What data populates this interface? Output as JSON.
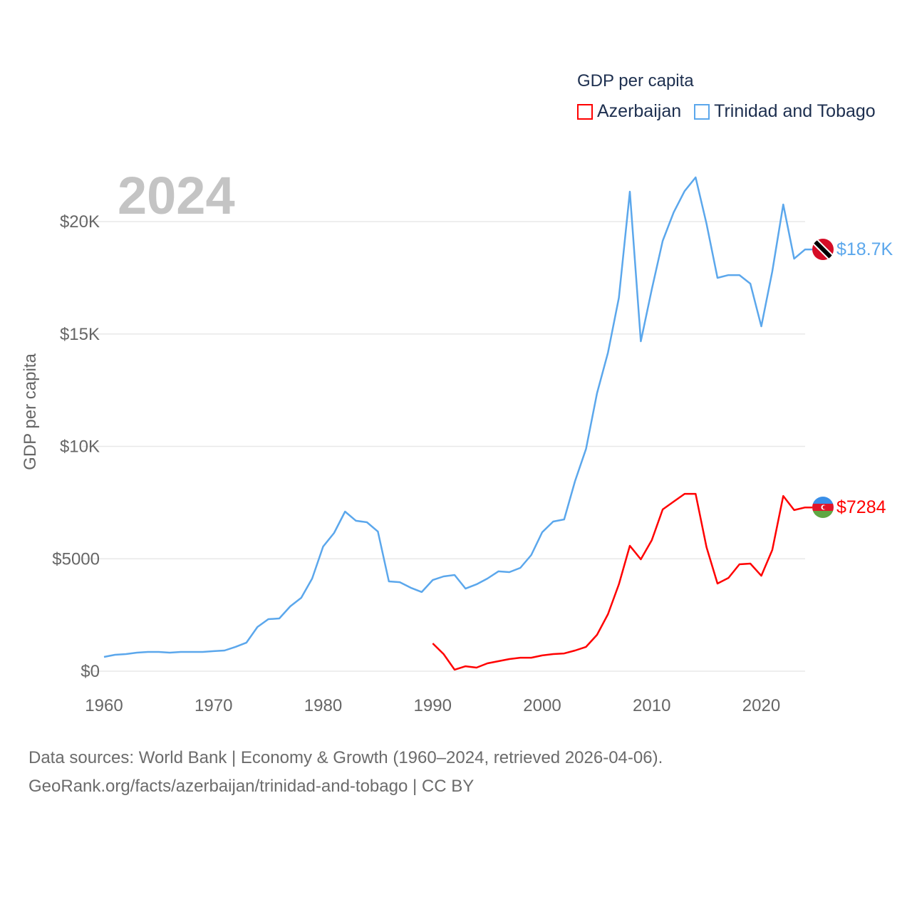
{
  "chart_data": {
    "type": "line",
    "title": "GDP per capita",
    "year_label": "2024",
    "xlabel": "",
    "ylabel": "GDP per capita",
    "xlim": [
      1960,
      2024
    ],
    "ylim": [
      0,
      22500
    ],
    "x_ticks": [
      1960,
      1970,
      1980,
      1990,
      2000,
      2010,
      2020
    ],
    "x_tick_labels": [
      "1960",
      "1970",
      "1980",
      "1990",
      "2000",
      "2010",
      "2020"
    ],
    "y_ticks": [
      0,
      5000,
      10000,
      15000,
      20000
    ],
    "y_tick_labels": [
      "$0",
      "$5000",
      "$10K",
      "$15K",
      "$20K"
    ],
    "grid": true,
    "legend_position": "top-right",
    "series": [
      {
        "name": "Azerbaijan",
        "color": "#ff0000",
        "end_label": "$7284",
        "start_year": 1990,
        "values": [
          1235,
          760,
          65,
          220,
          160,
          350,
          445,
          540,
          600,
          600,
          700,
          760,
          790,
          920,
          1080,
          1615,
          2535,
          3865,
          5580,
          4975,
          5830,
          7195,
          7545,
          7890,
          7890,
          5515,
          3900,
          4150,
          4755,
          4785,
          4245,
          5390,
          7795,
          7165,
          7284
        ]
      },
      {
        "name": "Trinidad and Tobago",
        "color": "#5ba7ec",
        "end_label": "$18.7K",
        "start_year": 1960,
        "values": [
          634,
          730,
          760,
          825,
          855,
          855,
          825,
          855,
          855,
          855,
          890,
          920,
          1080,
          1270,
          1965,
          2315,
          2345,
          2885,
          3265,
          4120,
          5545,
          6150,
          7100,
          6690,
          6625,
          6210,
          3995,
          3960,
          3710,
          3520,
          4055,
          4215,
          4280,
          3675,
          3865,
          4120,
          4440,
          4405,
          4595,
          5165,
          6180,
          6655,
          6750,
          8460,
          9890,
          12360,
          14170,
          16610,
          21330,
          14675,
          16990,
          19145,
          20410,
          21360,
          21965,
          19905,
          17495,
          17620,
          17620,
          17240,
          15340,
          17780,
          20760,
          18350,
          18760
        ]
      }
    ]
  },
  "source": {
    "line1": "Data sources: World Bank | Economy & Growth (1960–2024, retrieved 2026-04-06).",
    "line2": "GeoRank.org/facts/azerbaijan/trinidad-and-tobago | CC BY"
  }
}
